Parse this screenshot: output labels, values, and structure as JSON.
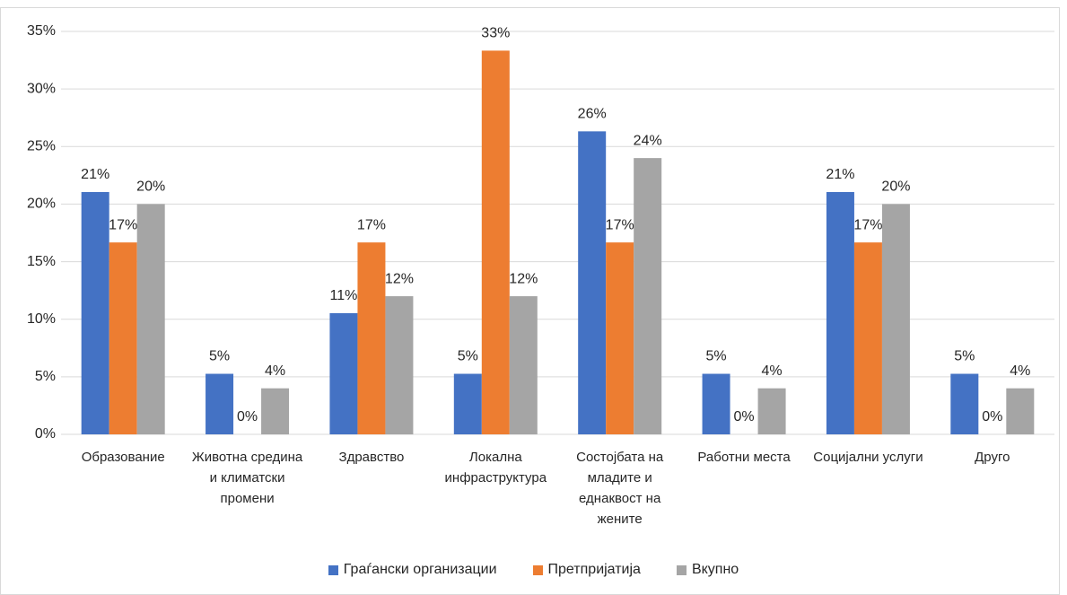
{
  "chart_data": {
    "type": "bar",
    "categories": [
      "Образование",
      "Животна средина и климатски промени",
      "Здравство",
      "Локална инфраструктура",
      "Состојбата на младите и еднаквост на жените",
      "Работни места",
      "Социјални услуги",
      "Друго"
    ],
    "series": [
      {
        "name": "Граѓански организации",
        "color": "#4472c4",
        "values": [
          21.05,
          5.26,
          10.53,
          5.26,
          26.32,
          5.26,
          21.05,
          5.26
        ],
        "value_labels": [
          "21%",
          "5%",
          "11%",
          "5%",
          "26%",
          "5%",
          "21%",
          "5%"
        ]
      },
      {
        "name": "Претпријатија",
        "color": "#ed7d31",
        "values": [
          16.67,
          0,
          16.67,
          33.33,
          16.67,
          0,
          16.67,
          0
        ],
        "value_labels": [
          "17%",
          "0%",
          "17%",
          "33%",
          "17%",
          "0%",
          "17%",
          "0%"
        ]
      },
      {
        "name": "Вкупно",
        "color": "#a5a5a5",
        "values": [
          20,
          4,
          12,
          12,
          24,
          4,
          20,
          4
        ],
        "value_labels": [
          "20%",
          "4%",
          "12%",
          "12%",
          "24%",
          "4%",
          "20%",
          "4%"
        ]
      }
    ],
    "ylim": [
      0,
      35
    ],
    "yticks": [
      {
        "value": 0,
        "label": "0%"
      },
      {
        "value": 5,
        "label": "5%"
      },
      {
        "value": 10,
        "label": "10%"
      },
      {
        "value": 15,
        "label": "15%"
      },
      {
        "value": 20,
        "label": "20%"
      },
      {
        "value": 25,
        "label": "25%"
      },
      {
        "value": 30,
        "label": "30%"
      },
      {
        "value": 35,
        "label": "35%"
      }
    ],
    "grid": true,
    "legend": "bottom"
  }
}
